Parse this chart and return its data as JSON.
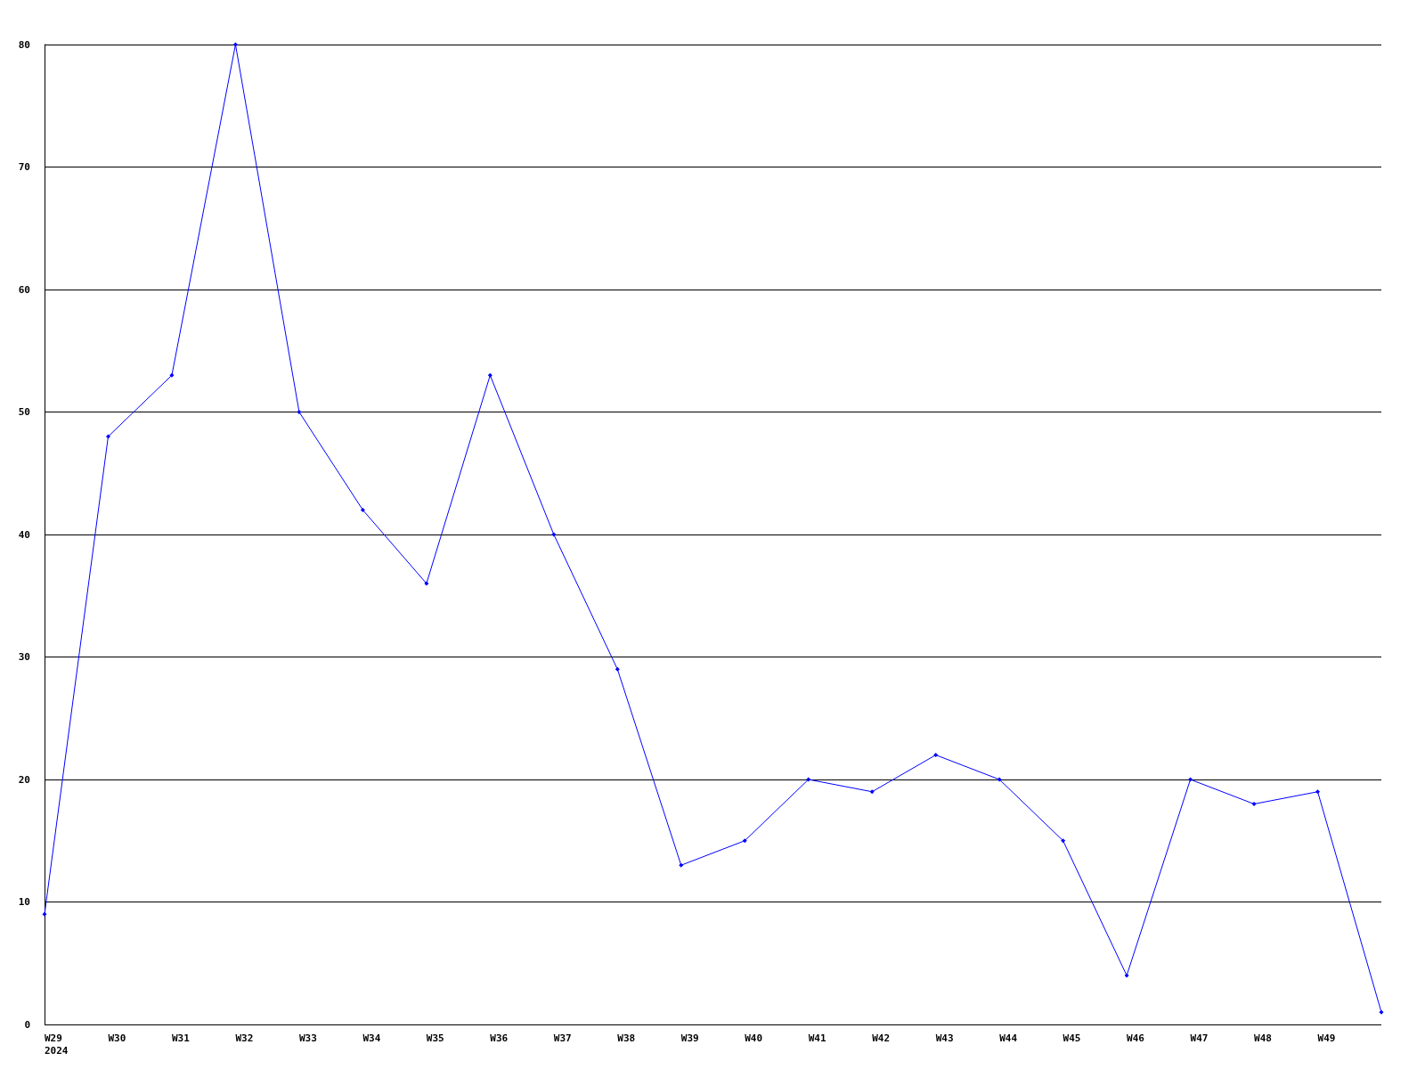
{
  "chart_data": {
    "type": "line",
    "categories": [
      "W29\n2024",
      "W30",
      "W31",
      "W32",
      "W33",
      "W34",
      "W35",
      "W36",
      "W37",
      "W38",
      "W39",
      "W40",
      "W41",
      "W42",
      "W43",
      "W44",
      "W45",
      "W46",
      "W47",
      "W48",
      "W49",
      null
    ],
    "series": [
      {
        "color": "#0000ff",
        "values": [
          9,
          48,
          53,
          80,
          50,
          42,
          36,
          53,
          40,
          29,
          13,
          15,
          20,
          19,
          22,
          20,
          15,
          4,
          20,
          18,
          19,
          1
        ]
      }
    ],
    "ylim": [
      0,
      80
    ],
    "yticks": [
      0,
      10,
      20,
      30,
      40,
      50,
      60,
      70,
      80
    ],
    "grid": "y",
    "marker": "diamond",
    "line_style": "solid"
  }
}
